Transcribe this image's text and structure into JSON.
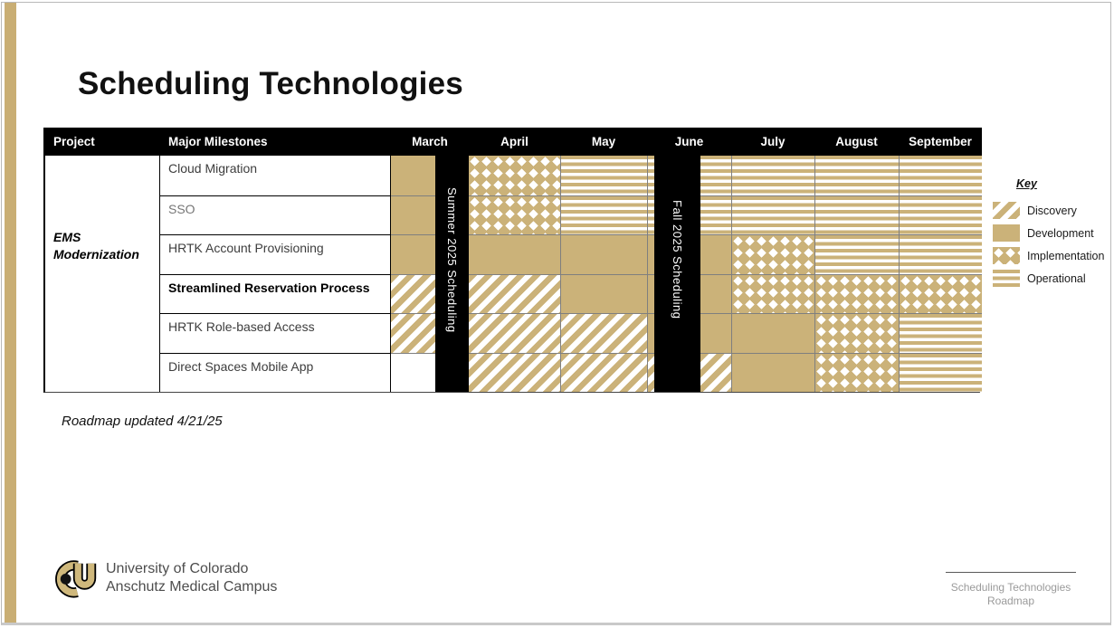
{
  "slide": {
    "title": "Scheduling Technologies",
    "updated_note": "Roadmap updated 4/21/25",
    "colors": {
      "gold": "#cbb279",
      "logo_gold": "#cfb87c",
      "header_black": "#000000"
    }
  },
  "table": {
    "col_project": "Project",
    "col_milestones": "Major Milestones",
    "project_name": "EMS Modernization",
    "summer_bar": "Summer 2025 Scheduling",
    "fall_bar": "Fall 2025 Scheduling"
  },
  "chart_data": {
    "type": "table",
    "title": "Scheduling Technologies",
    "project": "EMS Modernization",
    "x": [
      "March",
      "April",
      "May",
      "June",
      "July",
      "August",
      "September"
    ],
    "phase_types": [
      "Discovery",
      "Development",
      "Implementation",
      "Operational"
    ],
    "rows": [
      {
        "milestone": "Cloud Migration",
        "bold": false,
        "muted": false,
        "phases": [
          "Development",
          "Implementation",
          "Operational",
          "Operational",
          "Operational",
          "Operational",
          "Operational"
        ]
      },
      {
        "milestone": "SSO",
        "bold": false,
        "muted": true,
        "phases": [
          "Development",
          "Implementation",
          "Operational",
          "Operational",
          "Operational",
          "Operational",
          "Operational"
        ]
      },
      {
        "milestone": "HRTK Account Provisioning",
        "bold": false,
        "muted": false,
        "phases": [
          "Development",
          "Development",
          "Development",
          "Development",
          "Implementation",
          "Operational",
          "Operational"
        ]
      },
      {
        "milestone": "Streamlined Reservation Process",
        "bold": true,
        "muted": false,
        "phases": [
          "Discovery",
          "Discovery",
          "Development",
          "Development",
          "Implementation",
          "Implementation",
          "Implementation"
        ]
      },
      {
        "milestone": "HRTK Role-based Access",
        "bold": false,
        "muted": false,
        "phases": [
          "Discovery",
          "Discovery",
          "Discovery",
          "Development",
          "Development",
          "Implementation",
          "Operational"
        ]
      },
      {
        "milestone": "Direct Spaces Mobile App",
        "bold": false,
        "muted": false,
        "phases": [
          "None",
          "Discovery",
          "Discovery",
          "Discovery",
          "Development",
          "Implementation",
          "Operational"
        ]
      }
    ]
  },
  "legend": {
    "title": "Key",
    "items": [
      {
        "label": "Discovery",
        "pattern": "discovery"
      },
      {
        "label": "Development",
        "pattern": "development"
      },
      {
        "label": "Implementation",
        "pattern": "implementation"
      },
      {
        "label": "Operational",
        "pattern": "operational"
      }
    ]
  },
  "branding": {
    "line1": "University of Colorado",
    "line2": "Anschutz Medical Campus",
    "logo": "cu-interlocking-logo"
  },
  "footer": {
    "line1": "Scheduling Technologies",
    "line2": "Roadmap"
  }
}
